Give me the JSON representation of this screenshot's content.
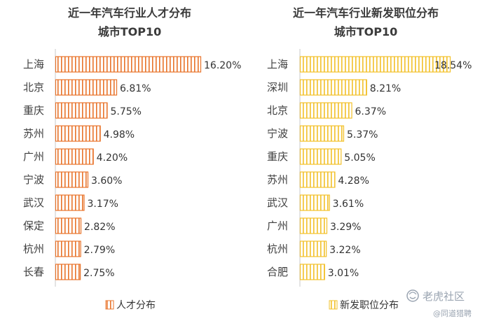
{
  "chart_data": [
    {
      "type": "bar",
      "orientation": "horizontal",
      "title_lines": [
        "近一年汽车行业人才分布",
        "城市TOP10"
      ],
      "categories": [
        "上海",
        "北京",
        "重庆",
        "苏州",
        "广州",
        "宁波",
        "武汉",
        "保定",
        "杭州",
        "长春"
      ],
      "values": [
        16.2,
        6.81,
        5.75,
        4.98,
        4.2,
        3.6,
        3.17,
        2.82,
        2.79,
        2.75
      ],
      "labels": [
        "16.20%",
        "6.81%",
        "5.75%",
        "4.98%",
        "4.20%",
        "3.60%",
        "3.17%",
        "2.82%",
        "2.79%",
        "2.75%"
      ],
      "series_name": "人才分布",
      "color": "#E8732A",
      "xlim": [
        0,
        16.2
      ],
      "legend_position": "bottom"
    },
    {
      "type": "bar",
      "orientation": "horizontal",
      "title_lines": [
        "近一年汽车行业新发职位分布",
        "城市TOP10"
      ],
      "categories": [
        "上海",
        "深圳",
        "北京",
        "宁波",
        "重庆",
        "苏州",
        "武汉",
        "广州",
        "杭州",
        "合肥"
      ],
      "values": [
        18.54,
        8.21,
        6.37,
        5.37,
        5.05,
        4.28,
        3.61,
        3.29,
        3.22,
        3.01
      ],
      "labels": [
        "18.54%",
        "8.21%",
        "6.37%",
        "5.37%",
        "5.05%",
        "4.28%",
        "3.61%",
        "3.29%",
        "3.22%",
        "3.01%"
      ],
      "series_name": "新发职位分布",
      "color": "#F2C029",
      "xlim": [
        0,
        18.54
      ],
      "legend_position": "bottom"
    }
  ],
  "watermark": {
    "brand": "老虎社区",
    "handle": "@同道猎聘"
  }
}
